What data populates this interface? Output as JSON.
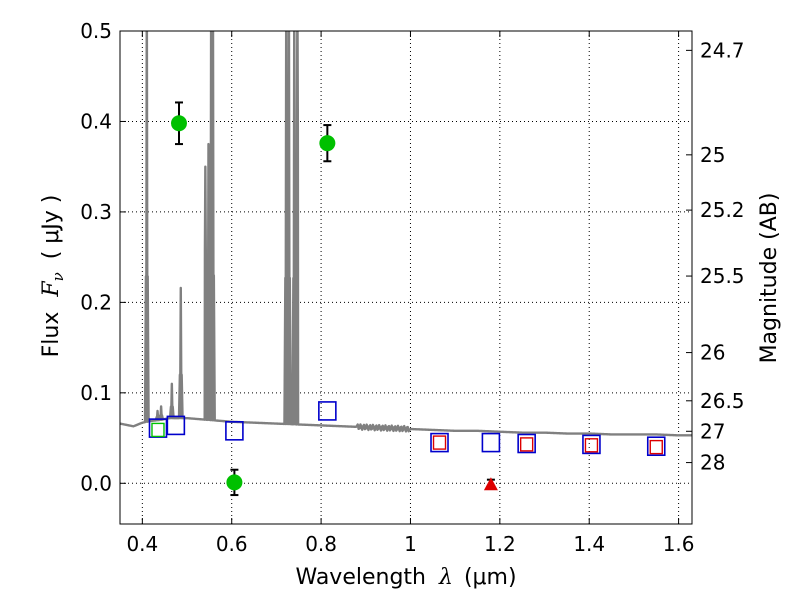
{
  "chart_data": {
    "type": "scatter",
    "title": "",
    "xlabel_prefix": "Wavelength",
    "xlabel_symbol": "λ",
    "xlabel_unit": "(μm)",
    "ylabel_prefix": "Flux",
    "ylabel_symbol": "F",
    "ylabel_subscript": "ν",
    "ylabel_unit": "( μJy )",
    "y2label": "Magnitude (AB)",
    "xlim": [
      0.35,
      1.63
    ],
    "ylim": [
      -0.045,
      0.5
    ],
    "x_ticks": [
      0.4,
      0.6,
      0.8,
      1.0,
      1.2,
      1.4,
      1.6
    ],
    "x_tick_labels": [
      "0.4",
      "0.6",
      "0.8",
      "1",
      "1.2",
      "1.4",
      "1.6"
    ],
    "y_ticks": [
      0.0,
      0.1,
      0.2,
      0.3,
      0.4,
      0.5
    ],
    "y_tick_labels": [
      "0.0",
      "0.1",
      "0.2",
      "0.3",
      "0.4",
      "0.5"
    ],
    "mag_ticks": [
      {
        "label": "24.7",
        "flux": 0.4786
      },
      {
        "label": "25",
        "flux": 0.3631
      },
      {
        "label": "25.2",
        "flux": 0.302
      },
      {
        "label": "25.5",
        "flux": 0.2291
      },
      {
        "label": "26",
        "flux": 0.1445
      },
      {
        "label": "26.5",
        "flux": 0.0912
      },
      {
        "label": "27",
        "flux": 0.0575
      },
      {
        "label": "28",
        "flux": 0.0229
      }
    ],
    "grid": true,
    "colors": {
      "detections": "#00c000",
      "model_blue": "#0000cc",
      "model_red": "#dd0000",
      "upper_limit": "#dd0000",
      "spectrum": "#808080",
      "errorbar": "#000000"
    },
    "series": [
      {
        "name": "photometric detections",
        "marker": "circle",
        "points": [
          {
            "x": 0.482,
            "y": 0.398,
            "err": 0.023
          },
          {
            "x": 0.606,
            "y": 0.001,
            "err": 0.014
          },
          {
            "x": 0.814,
            "y": 0.376,
            "err": 0.02
          }
        ]
      },
      {
        "name": "model photometry (blue squares)",
        "marker": "square",
        "points": [
          {
            "x": 0.435,
            "y": 0.061
          },
          {
            "x": 0.475,
            "y": 0.064
          },
          {
            "x": 0.606,
            "y": 0.058
          },
          {
            "x": 0.814,
            "y": 0.08
          },
          {
            "x": 1.065,
            "y": 0.045
          },
          {
            "x": 1.18,
            "y": 0.045
          },
          {
            "x": 1.26,
            "y": 0.044
          },
          {
            "x": 1.405,
            "y": 0.043
          },
          {
            "x": 1.55,
            "y": 0.041
          }
        ]
      },
      {
        "name": "model photometry (red squares)",
        "marker": "square-small",
        "points": [
          {
            "x": 1.065,
            "y": 0.045
          },
          {
            "x": 1.26,
            "y": 0.043
          },
          {
            "x": 1.405,
            "y": 0.042
          },
          {
            "x": 1.55,
            "y": 0.04
          }
        ]
      },
      {
        "name": "model photometry (green square)",
        "marker": "square-small",
        "points": [
          {
            "x": 0.435,
            "y": 0.059
          }
        ]
      },
      {
        "name": "non-detection",
        "marker": "triangle",
        "points": [
          {
            "x": 1.18,
            "y": -0.001,
            "err": 0.005
          }
        ]
      }
    ],
    "spectrum": {
      "continuum": [
        [
          0.35,
          0.066
        ],
        [
          0.38,
          0.063
        ],
        [
          0.4,
          0.067
        ],
        [
          0.42,
          0.069
        ],
        [
          0.44,
          0.07
        ],
        [
          0.46,
          0.072
        ],
        [
          0.5,
          0.072
        ],
        [
          0.55,
          0.07
        ],
        [
          0.6,
          0.068
        ],
        [
          0.65,
          0.067
        ],
        [
          0.7,
          0.066
        ],
        [
          0.75,
          0.065
        ],
        [
          0.8,
          0.064
        ],
        [
          0.85,
          0.063
        ],
        [
          0.9,
          0.062
        ],
        [
          0.95,
          0.061
        ],
        [
          1.0,
          0.06
        ],
        [
          1.05,
          0.059
        ],
        [
          1.1,
          0.058
        ],
        [
          1.15,
          0.058
        ],
        [
          1.2,
          0.057
        ],
        [
          1.25,
          0.056
        ],
        [
          1.3,
          0.056
        ],
        [
          1.35,
          0.055
        ],
        [
          1.4,
          0.055
        ],
        [
          1.45,
          0.054
        ],
        [
          1.5,
          0.054
        ],
        [
          1.55,
          0.054
        ],
        [
          1.6,
          0.053
        ],
        [
          1.63,
          0.053
        ]
      ],
      "lines": [
        {
          "x": 0.41,
          "peak": 0.55
        },
        {
          "x": 0.434,
          "peak": 0.08
        },
        {
          "x": 0.442,
          "peak": 0.085
        },
        {
          "x": 0.466,
          "peak": 0.11
        },
        {
          "x": 0.486,
          "peak": 0.216
        },
        {
          "x": 0.541,
          "peak": 0.35
        },
        {
          "x": 0.548,
          "peak": 0.375
        },
        {
          "x": 0.554,
          "peak": 0.55
        },
        {
          "x": 0.558,
          "peak": 0.55
        },
        {
          "x": 0.722,
          "peak": 0.55
        },
        {
          "x": 0.728,
          "peak": 0.55
        },
        {
          "x": 0.74,
          "peak": 0.55
        },
        {
          "x": 0.747,
          "peak": 0.55
        }
      ]
    }
  }
}
